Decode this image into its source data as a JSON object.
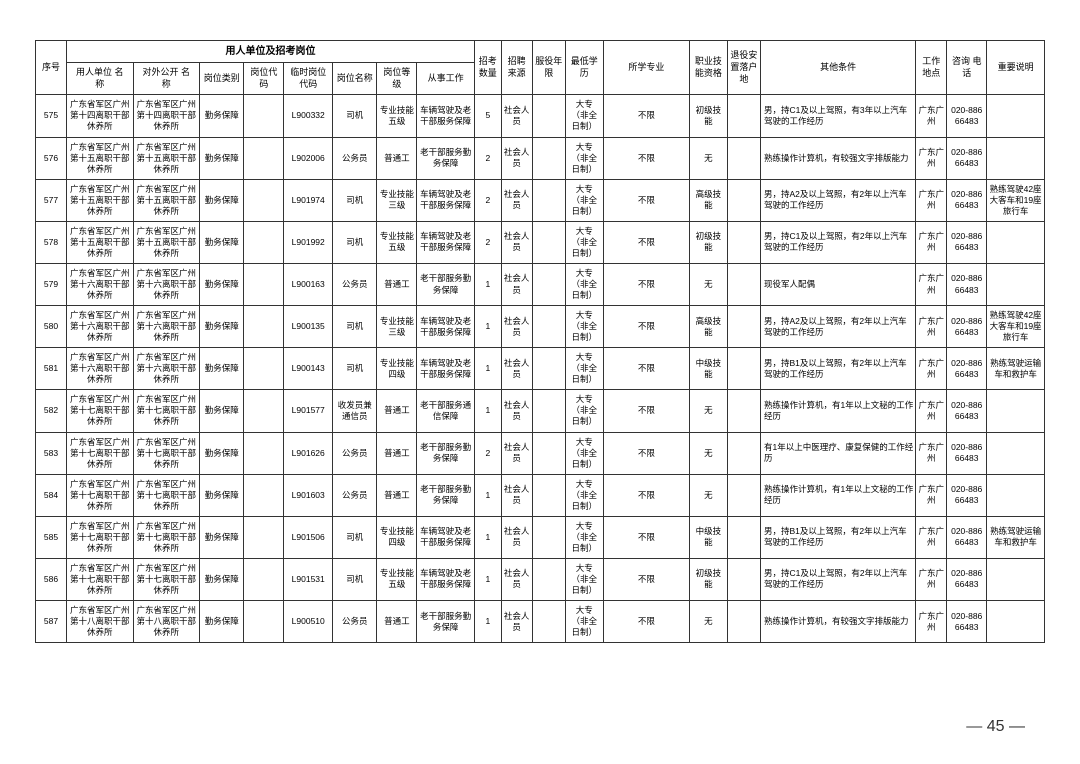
{
  "header": {
    "group1": "用人单位及招考岗位",
    "seq": "序号",
    "c1": "用人单位\n名　称",
    "c2": "对外公开\n名　称",
    "c3": "岗位类别",
    "c4": "岗位代码",
    "c5": "临时岗位\n代码",
    "c6": "岗位名称",
    "c7": "岗位等级",
    "c8": "从事工作",
    "c9": "招考\n数量",
    "c10": "招聘\n来源",
    "c11": "服役年\n限",
    "c12": "最低学\n历",
    "c13": "所学专业",
    "c14": "职业技\n能资格",
    "c15": "退役安\n置落户\n地",
    "c16": "其他条件",
    "c17": "工作\n地点",
    "c18": "咨询\n电话",
    "c19": "重要说明"
  },
  "rows": [
    {
      "seq": "575",
      "c1": "广东省军区广州第十四离职干部休养所",
      "c2": "广东省军区广州第十四离职干部休养所",
      "c3": "勤务保障",
      "c4": "",
      "c5": "L900332",
      "c6": "司机",
      "c7": "专业技能五级",
      "c8": "车辆驾驶及老干部服务保障",
      "c9": "5",
      "c10": "社会人员",
      "c11": "",
      "c12": "大专（非全日制）",
      "c13": "不限",
      "c14": "初级技能",
      "c15": "",
      "c16": "男，持C1及以上驾照，有3年以上汽车驾驶的工作经历",
      "c17": "广东广州",
      "c18": "020-88666483",
      "c19": ""
    },
    {
      "seq": "576",
      "c1": "广东省军区广州第十五离职干部休养所",
      "c2": "广东省军区广州第十五离职干部休养所",
      "c3": "勤务保障",
      "c4": "",
      "c5": "L902006",
      "c6": "公务员",
      "c7": "普通工",
      "c8": "老干部服务勤务保障",
      "c9": "2",
      "c10": "社会人员",
      "c11": "",
      "c12": "大专（非全日制）",
      "c13": "不限",
      "c14": "无",
      "c15": "",
      "c16": "熟练操作计算机，有较强文字排版能力",
      "c17": "广东广州",
      "c18": "020-88666483",
      "c19": ""
    },
    {
      "seq": "577",
      "c1": "广东省军区广州第十五离职干部休养所",
      "c2": "广东省军区广州第十五离职干部休养所",
      "c3": "勤务保障",
      "c4": "",
      "c5": "L901974",
      "c6": "司机",
      "c7": "专业技能三级",
      "c8": "车辆驾驶及老干部服务保障",
      "c9": "2",
      "c10": "社会人员",
      "c11": "",
      "c12": "大专（非全日制）",
      "c13": "不限",
      "c14": "高级技能",
      "c15": "",
      "c16": "男，持A2及以上驾照，有2年以上汽车驾驶的工作经历",
      "c17": "广东广州",
      "c18": "020-88666483",
      "c19": "熟练驾驶42座大客车和19座旅行车"
    },
    {
      "seq": "578",
      "c1": "广东省军区广州第十五离职干部休养所",
      "c2": "广东省军区广州第十五离职干部休养所",
      "c3": "勤务保障",
      "c4": "",
      "c5": "L901992",
      "c6": "司机",
      "c7": "专业技能五级",
      "c8": "车辆驾驶及老干部服务保障",
      "c9": "2",
      "c10": "社会人员",
      "c11": "",
      "c12": "大专（非全日制）",
      "c13": "不限",
      "c14": "初级技能",
      "c15": "",
      "c16": "男，持C1及以上驾照，有2年以上汽车驾驶的工作经历",
      "c17": "广东广州",
      "c18": "020-88666483",
      "c19": ""
    },
    {
      "seq": "579",
      "c1": "广东省军区广州第十六离职干部休养所",
      "c2": "广东省军区广州第十六离职干部休养所",
      "c3": "勤务保障",
      "c4": "",
      "c5": "L900163",
      "c6": "公务员",
      "c7": "普通工",
      "c8": "老干部服务勤务保障",
      "c9": "1",
      "c10": "社会人员",
      "c11": "",
      "c12": "大专（非全日制）",
      "c13": "不限",
      "c14": "无",
      "c15": "",
      "c16": "现役军人配偶",
      "c17": "广东广州",
      "c18": "020-88666483",
      "c19": ""
    },
    {
      "seq": "580",
      "c1": "广东省军区广州第十六离职干部休养所",
      "c2": "广东省军区广州第十六离职干部休养所",
      "c3": "勤务保障",
      "c4": "",
      "c5": "L900135",
      "c6": "司机",
      "c7": "专业技能三级",
      "c8": "车辆驾驶及老干部服务保障",
      "c9": "1",
      "c10": "社会人员",
      "c11": "",
      "c12": "大专（非全日制）",
      "c13": "不限",
      "c14": "高级技能",
      "c15": "",
      "c16": "男，持A2及以上驾照，有2年以上汽车驾驶的工作经历",
      "c17": "广东广州",
      "c18": "020-88666483",
      "c19": "熟练驾驶42座大客车和19座旅行车"
    },
    {
      "seq": "581",
      "c1": "广东省军区广州第十六离职干部休养所",
      "c2": "广东省军区广州第十六离职干部休养所",
      "c3": "勤务保障",
      "c4": "",
      "c5": "L900143",
      "c6": "司机",
      "c7": "专业技能四级",
      "c8": "车辆驾驶及老干部服务保障",
      "c9": "1",
      "c10": "社会人员",
      "c11": "",
      "c12": "大专（非全日制）",
      "c13": "不限",
      "c14": "中级技能",
      "c15": "",
      "c16": "男，持B1及以上驾照，有2年以上汽车驾驶的工作经历",
      "c17": "广东广州",
      "c18": "020-88666483",
      "c19": "熟练驾驶运输车和救护车"
    },
    {
      "seq": "582",
      "c1": "广东省军区广州第十七离职干部休养所",
      "c2": "广东省军区广州第十七离职干部休养所",
      "c3": "勤务保障",
      "c4": "",
      "c5": "L901577",
      "c6": "收发员兼通信员",
      "c7": "普通工",
      "c8": "老干部服务通信保障",
      "c9": "1",
      "c10": "社会人员",
      "c11": "",
      "c12": "大专（非全日制）",
      "c13": "不限",
      "c14": "无",
      "c15": "",
      "c16": "熟练操作计算机，有1年以上文秘的工作经历",
      "c17": "广东广州",
      "c18": "020-88666483",
      "c19": ""
    },
    {
      "seq": "583",
      "c1": "广东省军区广州第十七离职干部休养所",
      "c2": "广东省军区广州第十七离职干部休养所",
      "c3": "勤务保障",
      "c4": "",
      "c5": "L901626",
      "c6": "公务员",
      "c7": "普通工",
      "c8": "老干部服务勤务保障",
      "c9": "2",
      "c10": "社会人员",
      "c11": "",
      "c12": "大专（非全日制）",
      "c13": "不限",
      "c14": "无",
      "c15": "",
      "c16": "有1年以上中医理疗、康复保健的工作经历",
      "c17": "广东广州",
      "c18": "020-88666483",
      "c19": ""
    },
    {
      "seq": "584",
      "c1": "广东省军区广州第十七离职干部休养所",
      "c2": "广东省军区广州第十七离职干部休养所",
      "c3": "勤务保障",
      "c4": "",
      "c5": "L901603",
      "c6": "公务员",
      "c7": "普通工",
      "c8": "老干部服务勤务保障",
      "c9": "1",
      "c10": "社会人员",
      "c11": "",
      "c12": "大专（非全日制）",
      "c13": "不限",
      "c14": "无",
      "c15": "",
      "c16": "熟练操作计算机，有1年以上文秘的工作经历",
      "c17": "广东广州",
      "c18": "020-88666483",
      "c19": ""
    },
    {
      "seq": "585",
      "c1": "广东省军区广州第十七离职干部休养所",
      "c2": "广东省军区广州第十七离职干部休养所",
      "c3": "勤务保障",
      "c4": "",
      "c5": "L901506",
      "c6": "司机",
      "c7": "专业技能四级",
      "c8": "车辆驾驶及老干部服务保障",
      "c9": "1",
      "c10": "社会人员",
      "c11": "",
      "c12": "大专（非全日制）",
      "c13": "不限",
      "c14": "中级技能",
      "c15": "",
      "c16": "男，持B1及以上驾照，有2年以上汽车驾驶的工作经历",
      "c17": "广东广州",
      "c18": "020-88666483",
      "c19": "熟练驾驶运输车和救护车"
    },
    {
      "seq": "586",
      "c1": "广东省军区广州第十七离职干部休养所",
      "c2": "广东省军区广州第十七离职干部休养所",
      "c3": "勤务保障",
      "c4": "",
      "c5": "L901531",
      "c6": "司机",
      "c7": "专业技能五级",
      "c8": "车辆驾驶及老干部服务保障",
      "c9": "1",
      "c10": "社会人员",
      "c11": "",
      "c12": "大专（非全日制）",
      "c13": "不限",
      "c14": "初级技能",
      "c15": "",
      "c16": "男，持C1及以上驾照，有2年以上汽车驾驶的工作经历",
      "c17": "广东广州",
      "c18": "020-88666483",
      "c19": ""
    },
    {
      "seq": "587",
      "c1": "广东省军区广州第十八离职干部休养所",
      "c2": "广东省军区广州第十八离职干部休养所",
      "c3": "勤务保障",
      "c4": "",
      "c5": "L900510",
      "c6": "公务员",
      "c7": "普通工",
      "c8": "老干部服务勤务保障",
      "c9": "1",
      "c10": "社会人员",
      "c11": "",
      "c12": "大专（非全日制）",
      "c13": "不限",
      "c14": "无",
      "c15": "",
      "c16": "熟练操作计算机，有较强文字排版能力",
      "c17": "广东广州",
      "c18": "020-88666483",
      "c19": ""
    }
  ],
  "pageNumber": "45"
}
